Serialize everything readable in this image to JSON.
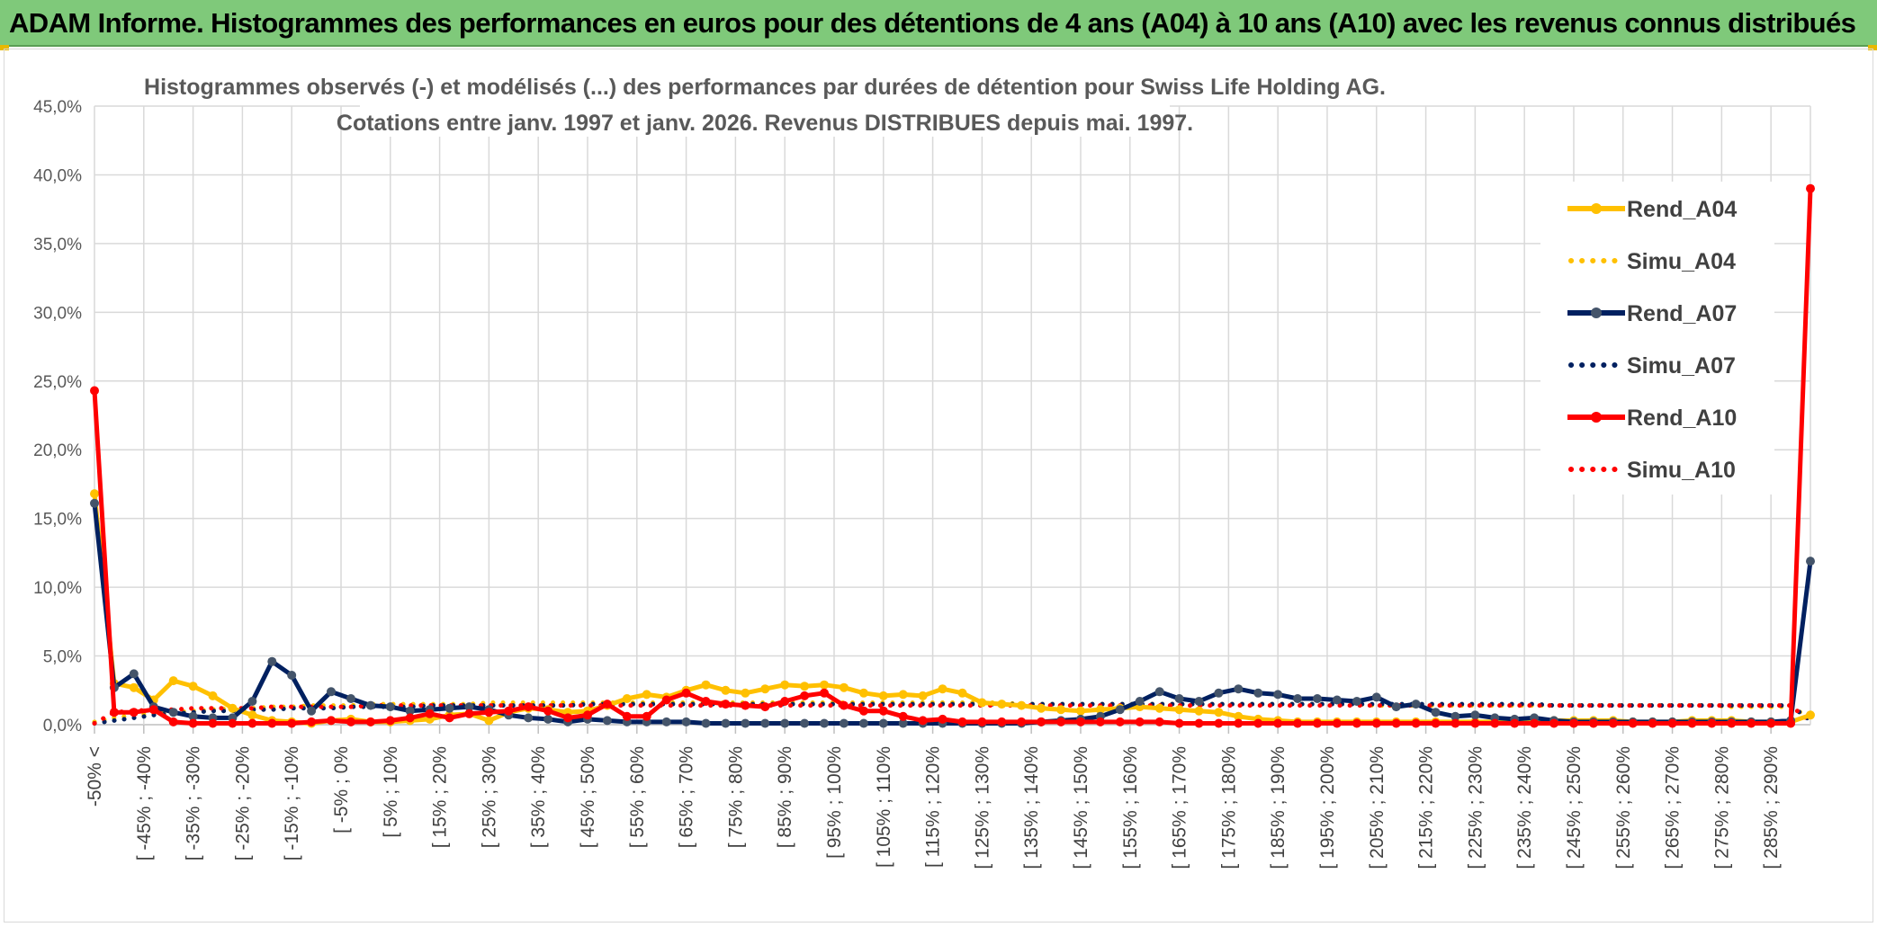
{
  "header": {
    "title": "ADAM Informe. Histogrammes des performances en euros pour des détentions de 4 ans (A04) à 10 ans (A10) avec les revenus connus distribués"
  },
  "colors": {
    "banner": "#7fc97a",
    "A04": "#ffc000",
    "A07": "#002060",
    "A07_marker": "#44546a",
    "A10": "#ff0000"
  },
  "chart_data": {
    "type": "line",
    "title": "Histogrammes observés (-) et modélisés (...) des performances par durées de détention pour Swiss Life Holding AG.",
    "subtitle": "Cotations entre janv. 1997 et janv. 2026. Revenus DISTRIBUES depuis mai. 1997.",
    "ylim": [
      0,
      45
    ],
    "yticks": [
      "0,0%",
      "5,0%",
      "10,0%",
      "15,0%",
      "20,0%",
      "25,0%",
      "30,0%",
      "35,0%",
      "40,0%",
      "45,0%"
    ],
    "x_labels": [
      "-50% <",
      "[ -45% ; -40%",
      "[ -35% ; -30%",
      "[ -25% ; -20%",
      "[ -15% ; -10%",
      "[ -5% ; 0%",
      "[ 5% ; 10%",
      "[ 15% ; 20%",
      "[ 25% ; 30%",
      "[ 35% ; 40%",
      "[ 45% ; 50%",
      "[ 55% ; 60%",
      "[ 65% ; 70%",
      "[ 75% ; 80%",
      "[ 85% ; 90%",
      "[ 95% ; 100%",
      "[ 105% ; 110%",
      "[ 115% ; 120%",
      "[ 125% ; 130%",
      "[ 135% ; 140%",
      "[ 145% ; 150%",
      "[ 155% ; 160%",
      "[ 165% ; 170%",
      "[ 175% ; 180%",
      "[ 185% ; 190%",
      "[ 195% ; 200%",
      "[ 205% ; 210%",
      "[ 215% ; 220%",
      "[ 225% ; 230%",
      "[ 235% ; 240%",
      "[ 245% ; 250%",
      "[ 255% ; 260%",
      "[ 265% ; 270%",
      "[ 275% ; 280%",
      "[ 285% ; 290%"
    ],
    "legend_position": "right",
    "series": [
      {
        "name": "Rend_A04",
        "style": "solid",
        "values": [
          16.8,
          3.0,
          2.7,
          1.8,
          3.2,
          2.8,
          2.1,
          1.2,
          0.7,
          0.3,
          0.2,
          0.1,
          0.3,
          0.4,
          0.2,
          0.2,
          0.3,
          0.4,
          0.7,
          0.8,
          0.3,
          0.9,
          1.2,
          1.1,
          0.9,
          1.0,
          1.4,
          1.9,
          2.2,
          2.0,
          2.5,
          2.9,
          2.5,
          2.3,
          2.6,
          2.9,
          2.8,
          2.9,
          2.7,
          2.3,
          2.1,
          2.2,
          2.1,
          2.6,
          2.3,
          1.6,
          1.5,
          1.4,
          1.2,
          1.1,
          1.0,
          1.1,
          1.2,
          1.3,
          1.2,
          1.1,
          1.0,
          0.9,
          0.6,
          0.4,
          0.3,
          0.2,
          0.2,
          0.2,
          0.2,
          0.2,
          0.2,
          0.2,
          0.2,
          0.2,
          0.2,
          0.2,
          0.2,
          0.3,
          0.3,
          0.3,
          0.3,
          0.3,
          0.2,
          0.2,
          0.2,
          0.3,
          0.3,
          0.3,
          0.2,
          0.2,
          0.2,
          0.7
        ]
      },
      {
        "name": "Simu_A04",
        "style": "dotted",
        "values": [
          0.2,
          0.5,
          0.7,
          0.8,
          0.9,
          1.0,
          1.1,
          1.2,
          1.2,
          1.3,
          1.3,
          1.4,
          1.4,
          1.4,
          1.5,
          1.5,
          1.5,
          1.5,
          1.5,
          1.5,
          1.6,
          1.6,
          1.6,
          1.6,
          1.6,
          1.6,
          1.6,
          1.6,
          1.6,
          1.6,
          1.6,
          1.6,
          1.6,
          1.6,
          1.6,
          1.6,
          1.6,
          1.6,
          1.6,
          1.6,
          1.6,
          1.6,
          1.6,
          1.6,
          1.6,
          1.6,
          1.6,
          1.5,
          1.5,
          1.5,
          1.5,
          1.5,
          1.5,
          1.5,
          1.5,
          1.5,
          1.5,
          1.5,
          1.5,
          1.5,
          1.5,
          1.5,
          1.5,
          1.5,
          1.5,
          1.4,
          1.4,
          1.4,
          1.4,
          1.4,
          1.4,
          1.4,
          1.4,
          1.4,
          1.4,
          1.4,
          1.4,
          1.4,
          1.4,
          1.4,
          1.4,
          1.4,
          1.4,
          1.3,
          1.3,
          1.3,
          1.3,
          0.5
        ]
      },
      {
        "name": "Rend_A07",
        "style": "solid",
        "values": [
          16.1,
          2.7,
          3.7,
          1.3,
          0.9,
          0.6,
          0.5,
          0.5,
          1.7,
          4.6,
          3.6,
          1.0,
          2.4,
          1.9,
          1.4,
          1.3,
          1.0,
          1.1,
          1.2,
          1.3,
          1.1,
          0.7,
          0.5,
          0.4,
          0.2,
          0.4,
          0.3,
          0.2,
          0.2,
          0.2,
          0.2,
          0.1,
          0.1,
          0.1,
          0.1,
          0.1,
          0.1,
          0.1,
          0.1,
          0.1,
          0.1,
          0.1,
          0.1,
          0.1,
          0.1,
          0.1,
          0.1,
          0.1,
          0.2,
          0.3,
          0.4,
          0.6,
          1.1,
          1.7,
          2.4,
          1.9,
          1.7,
          2.3,
          2.6,
          2.3,
          2.2,
          1.9,
          1.9,
          1.8,
          1.7,
          2.0,
          1.3,
          1.5,
          0.9,
          0.6,
          0.7,
          0.5,
          0.4,
          0.5,
          0.3,
          0.2,
          0.2,
          0.2,
          0.2,
          0.2,
          0.2,
          0.2,
          0.2,
          0.2,
          0.2,
          0.2,
          0.3,
          11.9
        ]
      },
      {
        "name": "Simu_A07",
        "style": "dotted",
        "values": [
          0.1,
          0.3,
          0.5,
          0.7,
          0.8,
          0.9,
          1.0,
          1.0,
          1.1,
          1.1,
          1.2,
          1.2,
          1.2,
          1.3,
          1.3,
          1.3,
          1.3,
          1.4,
          1.4,
          1.4,
          1.4,
          1.4,
          1.4,
          1.4,
          1.4,
          1.5,
          1.5,
          1.5,
          1.5,
          1.5,
          1.5,
          1.5,
          1.5,
          1.5,
          1.5,
          1.5,
          1.5,
          1.5,
          1.5,
          1.5,
          1.5,
          1.5,
          1.5,
          1.5,
          1.5,
          1.5,
          1.5,
          1.5,
          1.5,
          1.5,
          1.5,
          1.5,
          1.5,
          1.5,
          1.5,
          1.5,
          1.5,
          1.5,
          1.5,
          1.5,
          1.5,
          1.5,
          1.5,
          1.5,
          1.5,
          1.5,
          1.5,
          1.5,
          1.5,
          1.5,
          1.5,
          1.5,
          1.5,
          1.5,
          1.4,
          1.4,
          1.4,
          1.4,
          1.4,
          1.4,
          1.4,
          1.4,
          1.4,
          1.4,
          1.4,
          1.4,
          1.4,
          0.3
        ]
      },
      {
        "name": "Rend_A10",
        "style": "solid",
        "values": [
          24.3,
          0.9,
          0.9,
          1.1,
          0.2,
          0.1,
          0.1,
          0.1,
          0.1,
          0.1,
          0.1,
          0.2,
          0.3,
          0.2,
          0.2,
          0.3,
          0.5,
          0.8,
          0.5,
          0.8,
          0.9,
          1.0,
          1.3,
          1.0,
          0.5,
          0.7,
          1.5,
          0.6,
          0.6,
          1.8,
          2.3,
          1.7,
          1.5,
          1.4,
          1.3,
          1.7,
          2.1,
          2.3,
          1.4,
          1.0,
          1.0,
          0.6,
          0.3,
          0.4,
          0.2,
          0.2,
          0.2,
          0.2,
          0.2,
          0.2,
          0.2,
          0.2,
          0.2,
          0.2,
          0.2,
          0.1,
          0.1,
          0.1,
          0.1,
          0.1,
          0.1,
          0.1,
          0.1,
          0.1,
          0.1,
          0.1,
          0.1,
          0.1,
          0.1,
          0.1,
          0.1,
          0.1,
          0.1,
          0.1,
          0.1,
          0.1,
          0.1,
          0.1,
          0.1,
          0.1,
          0.1,
          0.1,
          0.1,
          0.1,
          0.1,
          0.1,
          0.1,
          39.0
        ]
      },
      {
        "name": "Simu_A10",
        "style": "dotted",
        "values": [
          0.1,
          0.9,
          1.0,
          1.1,
          1.1,
          1.2,
          1.2,
          1.2,
          1.2,
          1.3,
          1.3,
          1.3,
          1.3,
          1.3,
          1.4,
          1.4,
          1.4,
          1.4,
          1.4,
          1.4,
          1.4,
          1.4,
          1.4,
          1.4,
          1.4,
          1.4,
          1.4,
          1.4,
          1.4,
          1.4,
          1.4,
          1.4,
          1.4,
          1.4,
          1.4,
          1.4,
          1.4,
          1.4,
          1.4,
          1.4,
          1.4,
          1.4,
          1.4,
          1.4,
          1.4,
          1.4,
          1.4,
          1.4,
          1.4,
          1.4,
          1.4,
          1.4,
          1.4,
          1.4,
          1.4,
          1.4,
          1.4,
          1.4,
          1.4,
          1.4,
          1.4,
          1.4,
          1.4,
          1.4,
          1.4,
          1.4,
          1.4,
          1.4,
          1.4,
          1.4,
          1.4,
          1.4,
          1.4,
          1.4,
          1.4,
          1.4,
          1.4,
          1.4,
          1.4,
          1.4,
          1.4,
          1.4,
          1.4,
          1.4,
          1.4,
          1.4,
          1.4,
          0.2
        ]
      }
    ]
  }
}
